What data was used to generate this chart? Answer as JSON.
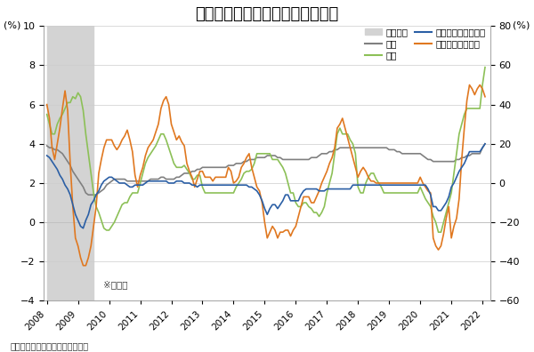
{
  "title": "電力、食品、家賎がそろって上昇",
  "ylabel_left": "(%)",
  "ylabel_right": "(%)",
  "source": "出所：米労働統計局より筆者作成",
  "note": "※前年比",
  "ylim_left": [
    -4,
    10
  ],
  "ylim_right": [
    -60,
    80
  ],
  "yticks_left": [
    -4,
    -2,
    0,
    2,
    4,
    6,
    8,
    10
  ],
  "yticks_right": [
    -60,
    -40,
    -20,
    0,
    20,
    40,
    60,
    80
  ],
  "recession_periods": [
    [
      2008.0,
      2009.5
    ]
  ],
  "dates": [
    2008.0,
    2008.083,
    2008.167,
    2008.25,
    2008.333,
    2008.417,
    2008.5,
    2008.583,
    2008.667,
    2008.75,
    2008.833,
    2008.917,
    2009.0,
    2009.083,
    2009.167,
    2009.25,
    2009.333,
    2009.417,
    2009.5,
    2009.583,
    2009.667,
    2009.75,
    2009.833,
    2009.917,
    2010.0,
    2010.083,
    2010.167,
    2010.25,
    2010.333,
    2010.417,
    2010.5,
    2010.583,
    2010.667,
    2010.75,
    2010.833,
    2010.917,
    2011.0,
    2011.083,
    2011.167,
    2011.25,
    2011.333,
    2011.417,
    2011.5,
    2011.583,
    2011.667,
    2011.75,
    2011.833,
    2011.917,
    2012.0,
    2012.083,
    2012.167,
    2012.25,
    2012.333,
    2012.417,
    2012.5,
    2012.583,
    2012.667,
    2012.75,
    2012.833,
    2012.917,
    2013.0,
    2013.083,
    2013.167,
    2013.25,
    2013.333,
    2013.417,
    2013.5,
    2013.583,
    2013.667,
    2013.75,
    2013.833,
    2013.917,
    2014.0,
    2014.083,
    2014.167,
    2014.25,
    2014.333,
    2014.417,
    2014.5,
    2014.583,
    2014.667,
    2014.75,
    2014.833,
    2014.917,
    2015.0,
    2015.083,
    2015.167,
    2015.25,
    2015.333,
    2015.417,
    2015.5,
    2015.583,
    2015.667,
    2015.75,
    2015.833,
    2015.917,
    2016.0,
    2016.083,
    2016.167,
    2016.25,
    2016.333,
    2016.417,
    2016.5,
    2016.583,
    2016.667,
    2016.75,
    2016.833,
    2016.917,
    2017.0,
    2017.083,
    2017.167,
    2017.25,
    2017.333,
    2017.417,
    2017.5,
    2017.583,
    2017.667,
    2017.75,
    2017.833,
    2017.917,
    2018.0,
    2018.083,
    2018.167,
    2018.25,
    2018.333,
    2018.417,
    2018.5,
    2018.583,
    2018.667,
    2018.75,
    2018.833,
    2018.917,
    2019.0,
    2019.083,
    2019.167,
    2019.25,
    2019.333,
    2019.417,
    2019.5,
    2019.583,
    2019.667,
    2019.75,
    2019.833,
    2019.917,
    2020.0,
    2020.083,
    2020.167,
    2020.25,
    2020.333,
    2020.417,
    2020.5,
    2020.583,
    2020.667,
    2020.75,
    2020.833,
    2020.917,
    2021.0,
    2021.083,
    2021.167,
    2021.25,
    2021.333,
    2021.417,
    2021.5,
    2021.583,
    2021.667,
    2021.75,
    2021.833,
    2021.917,
    2022.0,
    2022.083
  ],
  "rent": [
    3.9,
    3.8,
    3.8,
    3.7,
    3.7,
    3.6,
    3.5,
    3.3,
    3.1,
    2.9,
    2.6,
    2.4,
    2.2,
    2.0,
    1.8,
    1.5,
    1.4,
    1.4,
    1.4,
    1.4,
    1.5,
    1.6,
    1.7,
    1.9,
    2.0,
    2.1,
    2.2,
    2.2,
    2.2,
    2.2,
    2.2,
    2.1,
    2.1,
    2.1,
    2.1,
    2.1,
    2.1,
    2.1,
    2.1,
    2.1,
    2.2,
    2.2,
    2.2,
    2.2,
    2.3,
    2.3,
    2.2,
    2.2,
    2.2,
    2.2,
    2.3,
    2.3,
    2.4,
    2.5,
    2.5,
    2.5,
    2.6,
    2.6,
    2.7,
    2.7,
    2.8,
    2.8,
    2.8,
    2.8,
    2.8,
    2.8,
    2.8,
    2.8,
    2.8,
    2.8,
    2.9,
    2.9,
    2.9,
    3.0,
    3.0,
    3.0,
    3.1,
    3.1,
    3.2,
    3.2,
    3.2,
    3.3,
    3.3,
    3.3,
    3.3,
    3.4,
    3.4,
    3.4,
    3.4,
    3.3,
    3.3,
    3.2,
    3.2,
    3.2,
    3.2,
    3.2,
    3.2,
    3.2,
    3.2,
    3.2,
    3.2,
    3.2,
    3.3,
    3.3,
    3.3,
    3.4,
    3.5,
    3.5,
    3.5,
    3.6,
    3.6,
    3.7,
    3.7,
    3.8,
    3.8,
    3.8,
    3.8,
    3.8,
    3.8,
    3.8,
    3.8,
    3.8,
    3.8,
    3.8,
    3.8,
    3.8,
    3.8,
    3.8,
    3.8,
    3.8,
    3.8,
    3.8,
    3.7,
    3.7,
    3.7,
    3.6,
    3.6,
    3.5,
    3.5,
    3.5,
    3.5,
    3.5,
    3.5,
    3.5,
    3.5,
    3.4,
    3.3,
    3.2,
    3.2,
    3.1,
    3.1,
    3.1,
    3.1,
    3.1,
    3.1,
    3.1,
    3.1,
    3.1,
    3.2,
    3.2,
    3.3,
    3.3,
    3.4,
    3.4,
    3.5,
    3.5,
    3.5,
    3.5,
    3.8,
    4.0
  ],
  "food": [
    5.5,
    5.0,
    4.5,
    4.5,
    5.0,
    5.3,
    5.5,
    5.8,
    6.1,
    6.1,
    6.4,
    6.3,
    6.6,
    6.4,
    5.7,
    4.5,
    3.5,
    2.5,
    1.5,
    0.8,
    0.5,
    0.1,
    -0.3,
    -0.4,
    -0.4,
    -0.2,
    0.0,
    0.3,
    0.6,
    0.9,
    1.0,
    1.0,
    1.3,
    1.5,
    1.5,
    1.5,
    2.0,
    2.5,
    3.0,
    3.3,
    3.5,
    3.7,
    3.9,
    4.2,
    4.5,
    4.5,
    4.2,
    3.8,
    3.4,
    3.0,
    2.8,
    2.8,
    2.8,
    2.9,
    2.7,
    2.5,
    2.2,
    2.2,
    2.4,
    2.4,
    1.8,
    1.5,
    1.5,
    1.5,
    1.5,
    1.5,
    1.5,
    1.5,
    1.5,
    1.5,
    1.5,
    1.5,
    1.5,
    1.8,
    2.0,
    2.2,
    2.5,
    2.6,
    2.6,
    2.7,
    3.0,
    3.5,
    3.5,
    3.5,
    3.5,
    3.5,
    3.5,
    3.2,
    3.2,
    3.2,
    3.0,
    2.8,
    2.5,
    2.0,
    1.5,
    1.5,
    1.0,
    0.8,
    0.8,
    1.0,
    1.0,
    0.8,
    0.7,
    0.5,
    0.5,
    0.3,
    0.5,
    0.8,
    1.5,
    2.0,
    2.5,
    3.5,
    4.5,
    4.8,
    4.5,
    4.5,
    4.5,
    4.2,
    4.0,
    3.5,
    1.8,
    1.5,
    1.5,
    2.0,
    2.3,
    2.5,
    2.5,
    2.2,
    2.0,
    1.8,
    1.5,
    1.5,
    1.5,
    1.5,
    1.5,
    1.5,
    1.5,
    1.5,
    1.5,
    1.5,
    1.5,
    1.5,
    1.5,
    1.5,
    1.8,
    1.5,
    1.2,
    1.0,
    0.8,
    0.3,
    0.0,
    -0.5,
    -0.5,
    0.0,
    0.5,
    1.0,
    1.5,
    2.5,
    3.5,
    4.5,
    5.0,
    5.5,
    5.8,
    5.8,
    5.8,
    5.8,
    5.8,
    5.8,
    7.0,
    7.9
  ],
  "gasoline": [
    40,
    33,
    18,
    12,
    20,
    28,
    38,
    47,
    37,
    10,
    -12,
    -28,
    -32,
    -38,
    -42,
    -42,
    -38,
    -32,
    -22,
    -12,
    5,
    12,
    18,
    22,
    22,
    22,
    19,
    17,
    19,
    22,
    24,
    27,
    22,
    16,
    4,
    -2,
    4,
    8,
    14,
    18,
    20,
    22,
    26,
    30,
    38,
    42,
    44,
    40,
    30,
    26,
    22,
    24,
    21,
    19,
    10,
    6,
    3,
    -2,
    2,
    6,
    6,
    3,
    3,
    3,
    1,
    3,
    3,
    3,
    3,
    3,
    8,
    6,
    0,
    1,
    3,
    8,
    10,
    13,
    15,
    8,
    3,
    -2,
    -4,
    -10,
    -20,
    -28,
    -25,
    -22,
    -24,
    -28,
    -25,
    -25,
    -24,
    -24,
    -27,
    -24,
    -22,
    -17,
    -12,
    -7,
    -7,
    -7,
    -10,
    -10,
    -7,
    -4,
    0,
    3,
    6,
    10,
    13,
    18,
    28,
    30,
    33,
    28,
    23,
    18,
    13,
    8,
    3,
    6,
    8,
    6,
    3,
    1,
    1,
    0,
    0,
    0,
    0,
    0,
    0,
    0,
    0,
    0,
    0,
    0,
    0,
    0,
    0,
    0,
    0,
    0,
    3,
    0,
    -2,
    -4,
    -5,
    -28,
    -32,
    -34,
    -32,
    -26,
    -18,
    -12,
    -28,
    -22,
    -18,
    -8,
    12,
    28,
    42,
    50,
    48,
    45,
    48,
    50,
    48,
    44
  ],
  "elec_gas": [
    14,
    13,
    11,
    9,
    7,
    4,
    2,
    -1,
    -3,
    -6,
    -11,
    -16,
    -19,
    -22,
    -23,
    -19,
    -16,
    -11,
    -9,
    -6,
    -4,
    -1,
    1,
    2,
    3,
    3,
    2,
    1,
    0,
    0,
    0,
    -1,
    -2,
    -2,
    -1,
    -1,
    -1,
    -1,
    0,
    1,
    1,
    1,
    1,
    1,
    1,
    1,
    1,
    0,
    0,
    0,
    1,
    1,
    1,
    0,
    0,
    0,
    -1,
    -1,
    -2,
    -1,
    -1,
    -1,
    -1,
    -1,
    -1,
    -1,
    -1,
    -1,
    -1,
    -1,
    -1,
    -1,
    -1,
    -1,
    -1,
    -1,
    -1,
    -1,
    -2,
    -2,
    -3,
    -4,
    -6,
    -9,
    -13,
    -16,
    -13,
    -11,
    -11,
    -13,
    -11,
    -9,
    -6,
    -6,
    -9,
    -9,
    -9,
    -9,
    -6,
    -4,
    -3,
    -3,
    -3,
    -3,
    -3,
    -4,
    -4,
    -4,
    -3,
    -3,
    -3,
    -3,
    -3,
    -3,
    -3,
    -3,
    -3,
    -3,
    -1,
    -1,
    -1,
    -1,
    -1,
    -1,
    -1,
    -1,
    -1,
    -1,
    -1,
    -1,
    -1,
    -1,
    -1,
    -1,
    -1,
    -1,
    -1,
    -1,
    -1,
    -1,
    -1,
    -1,
    -1,
    -1,
    -1,
    -1,
    -1,
    -3,
    -6,
    -12,
    -12,
    -14,
    -14,
    -12,
    -10,
    -7,
    -2,
    0,
    3,
    6,
    8,
    10,
    13,
    16,
    16,
    16,
    16,
    16,
    18,
    20
  ],
  "xticks": [
    2008,
    2009,
    2010,
    2011,
    2012,
    2013,
    2014,
    2015,
    2016,
    2017,
    2018,
    2019,
    2020,
    2021,
    2022
  ],
  "background_color": "#ffffff",
  "recession_color": "#d3d3d3",
  "rent_color": "#808080",
  "food_color": "#8CC057",
  "gasoline_color": "#E07820",
  "elec_color": "#2B5FA5"
}
